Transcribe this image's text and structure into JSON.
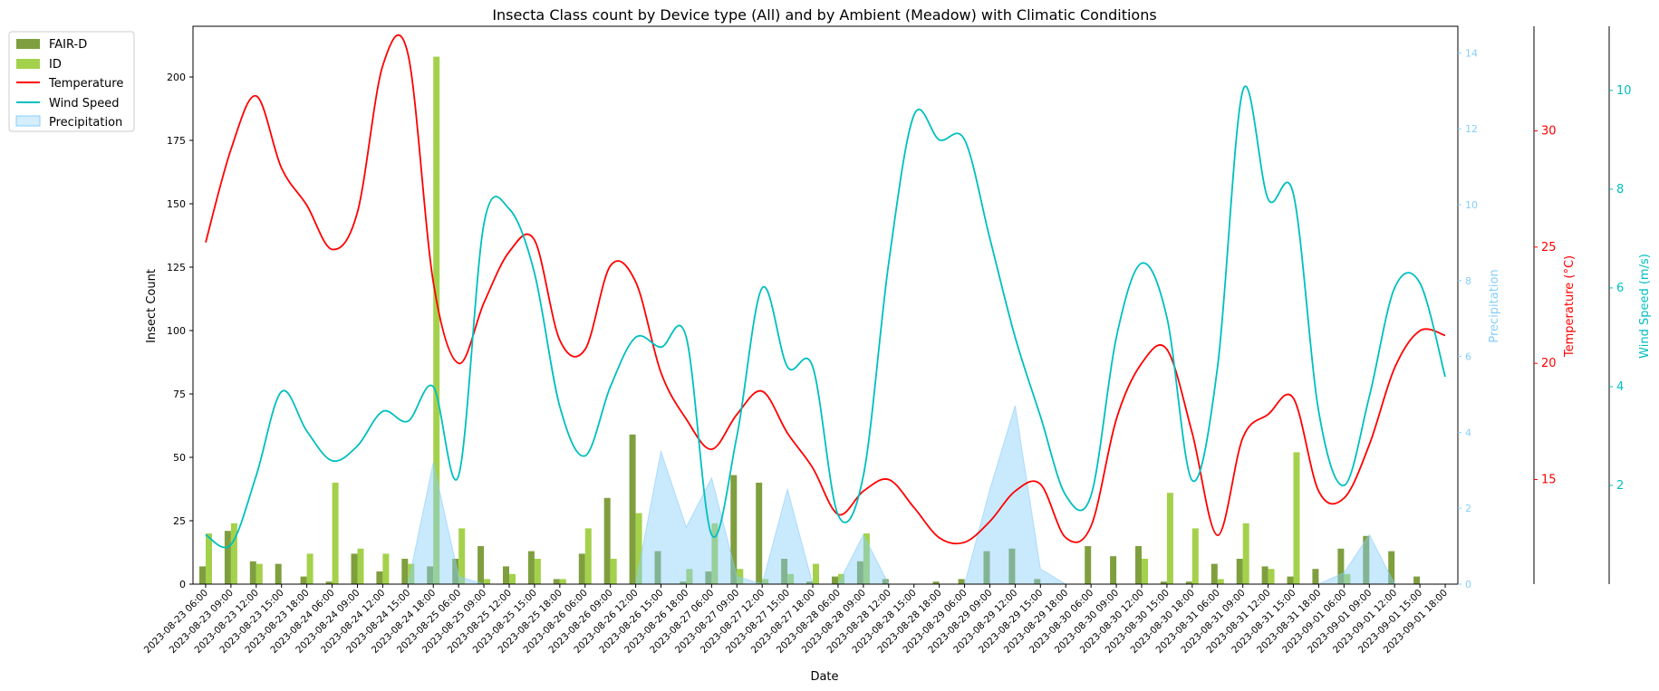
{
  "chart_data": {
    "type": "bar",
    "title": "Insecta Class count by Device type (All) and by Ambient (Meadow) with Climatic Conditions",
    "xlabel": "Date",
    "ylabel": "Insect Count",
    "ylabel_precip": "Precipitation",
    "ylabel_temp": "Temperature (°C)",
    "ylabel_wind": "Wind Speed (m/s)",
    "ylim": [
      0,
      220
    ],
    "precip_lim": [
      0,
      14.7
    ],
    "temp_lim": [
      10.5,
      34.5
    ],
    "wind_lim": [
      0,
      11.3
    ],
    "yticks": [
      0,
      25,
      50,
      75,
      100,
      125,
      150,
      175,
      200
    ],
    "precip_ticks": [
      0,
      2,
      4,
      6,
      8,
      10,
      12,
      14
    ],
    "temp_ticks": [
      15,
      20,
      25,
      30
    ],
    "wind_ticks": [
      2,
      4,
      6,
      8,
      10
    ],
    "legend_position": "outside-top-left",
    "grid": false,
    "colors": {
      "fair_d": "#7f9f3f",
      "id": "#a4d14b",
      "temperature": "#ff0000",
      "wind": "#00bfbf",
      "precip_fill": "#87cefa",
      "precip_axis": "#87cefa",
      "temp_axis": "#ff0000",
      "wind_axis": "#00bfbf"
    },
    "categories": [
      "2023-08-23 06:00",
      "2023-08-23 09:00",
      "2023-08-23 12:00",
      "2023-08-23 15:00",
      "2023-08-23 18:00",
      "2023-08-24 06:00",
      "2023-08-24 09:00",
      "2023-08-24 12:00",
      "2023-08-24 15:00",
      "2023-08-24 18:00",
      "2023-08-25 06:00",
      "2023-08-25 09:00",
      "2023-08-25 12:00",
      "2023-08-25 15:00",
      "2023-08-25 18:00",
      "2023-08-26 06:00",
      "2023-08-26 09:00",
      "2023-08-26 12:00",
      "2023-08-26 15:00",
      "2023-08-26 18:00",
      "2023-08-27 06:00",
      "2023-08-27 09:00",
      "2023-08-27 12:00",
      "2023-08-27 15:00",
      "2023-08-27 18:00",
      "2023-08-28 06:00",
      "2023-08-28 09:00",
      "2023-08-28 12:00",
      "2023-08-28 15:00",
      "2023-08-28 18:00",
      "2023-08-29 06:00",
      "2023-08-29 09:00",
      "2023-08-29 12:00",
      "2023-08-29 15:00",
      "2023-08-29 18:00",
      "2023-08-30 06:00",
      "2023-08-30 09:00",
      "2023-08-30 12:00",
      "2023-08-30 15:00",
      "2023-08-30 18:00",
      "2023-08-31 06:00",
      "2023-08-31 09:00",
      "2023-08-31 12:00",
      "2023-08-31 15:00",
      "2023-08-31 18:00",
      "2023-09-01 06:00",
      "2023-09-01 09:00",
      "2023-09-01 12:00",
      "2023-09-01 15:00",
      "2023-09-01 18:00"
    ],
    "series": [
      {
        "name": "FAIR-D",
        "values": [
          7,
          21,
          9,
          8,
          3,
          1,
          12,
          5,
          10,
          7,
          10,
          15,
          7,
          13,
          2,
          12,
          34,
          59,
          13,
          1,
          5,
          43,
          40,
          10,
          1,
          3,
          9,
          2,
          0,
          1,
          2,
          13,
          14,
          2,
          0,
          15,
          11,
          15,
          1,
          1,
          8,
          10,
          7,
          3,
          6,
          14,
          19,
          13,
          3,
          0
        ]
      },
      {
        "name": "ID",
        "values": [
          20,
          24,
          8,
          0,
          12,
          40,
          14,
          12,
          8,
          208,
          22,
          2,
          4,
          10,
          2,
          22,
          10,
          28,
          0,
          6,
          24,
          6,
          2,
          4,
          8,
          4,
          20,
          0,
          0,
          0,
          0,
          0,
          0,
          0,
          0,
          0,
          0,
          10,
          36,
          22,
          2,
          24,
          6,
          52,
          0,
          4,
          0,
          0,
          0,
          0
        ]
      }
    ],
    "line_series": [
      {
        "name": "Temperature",
        "values": [
          25.2,
          29.2,
          31.5,
          28.4,
          26.8,
          24.9,
          26.5,
          32.8,
          33.3,
          23.5,
          20.0,
          22.6,
          24.8,
          25.3,
          21.0,
          20.6,
          24.2,
          23.5,
          19.6,
          17.6,
          16.3,
          17.8,
          18.8,
          17.0,
          15.5,
          13.5,
          14.5,
          15.0,
          13.8,
          12.5,
          12.3,
          13.2,
          14.5,
          14.8,
          12.5,
          13.0,
          17.6,
          20.0,
          20.6,
          17.0,
          12.6,
          16.8,
          17.8,
          18.5,
          14.5,
          14.2,
          16.5,
          19.8,
          21.4,
          21.2
        ]
      },
      {
        "name": "Wind Speed",
        "values": [
          1.0,
          0.8,
          2.2,
          3.9,
          3.1,
          2.5,
          2.8,
          3.5,
          3.3,
          4.0,
          2.2,
          7.3,
          7.6,
          6.3,
          3.6,
          2.6,
          4.0,
          5.0,
          4.8,
          5.0,
          1.0,
          3.0,
          6.0,
          4.4,
          4.4,
          1.4,
          2.2,
          6.5,
          9.5,
          9.0,
          9.0,
          7.0,
          5.0,
          3.4,
          1.8,
          1.8,
          5.0,
          6.5,
          5.4,
          2.1,
          4.4,
          10.0,
          7.8,
          7.9,
          3.5,
          2.0,
          3.8,
          6.0,
          6.1,
          4.2
        ]
      },
      {
        "name": "Precipitation",
        "values": [
          0,
          0,
          0,
          0,
          0,
          0,
          0,
          0,
          0,
          3.2,
          0.2,
          0,
          0,
          0,
          0,
          0,
          0,
          0,
          3.5,
          1.5,
          2.8,
          0.2,
          0,
          2.5,
          0,
          0,
          1.3,
          0,
          0,
          0,
          0,
          2.5,
          4.7,
          0.4,
          0,
          0,
          0,
          0,
          0,
          0,
          0,
          0,
          0,
          0,
          0,
          0.3,
          1.3,
          0,
          0,
          0
        ]
      }
    ]
  }
}
